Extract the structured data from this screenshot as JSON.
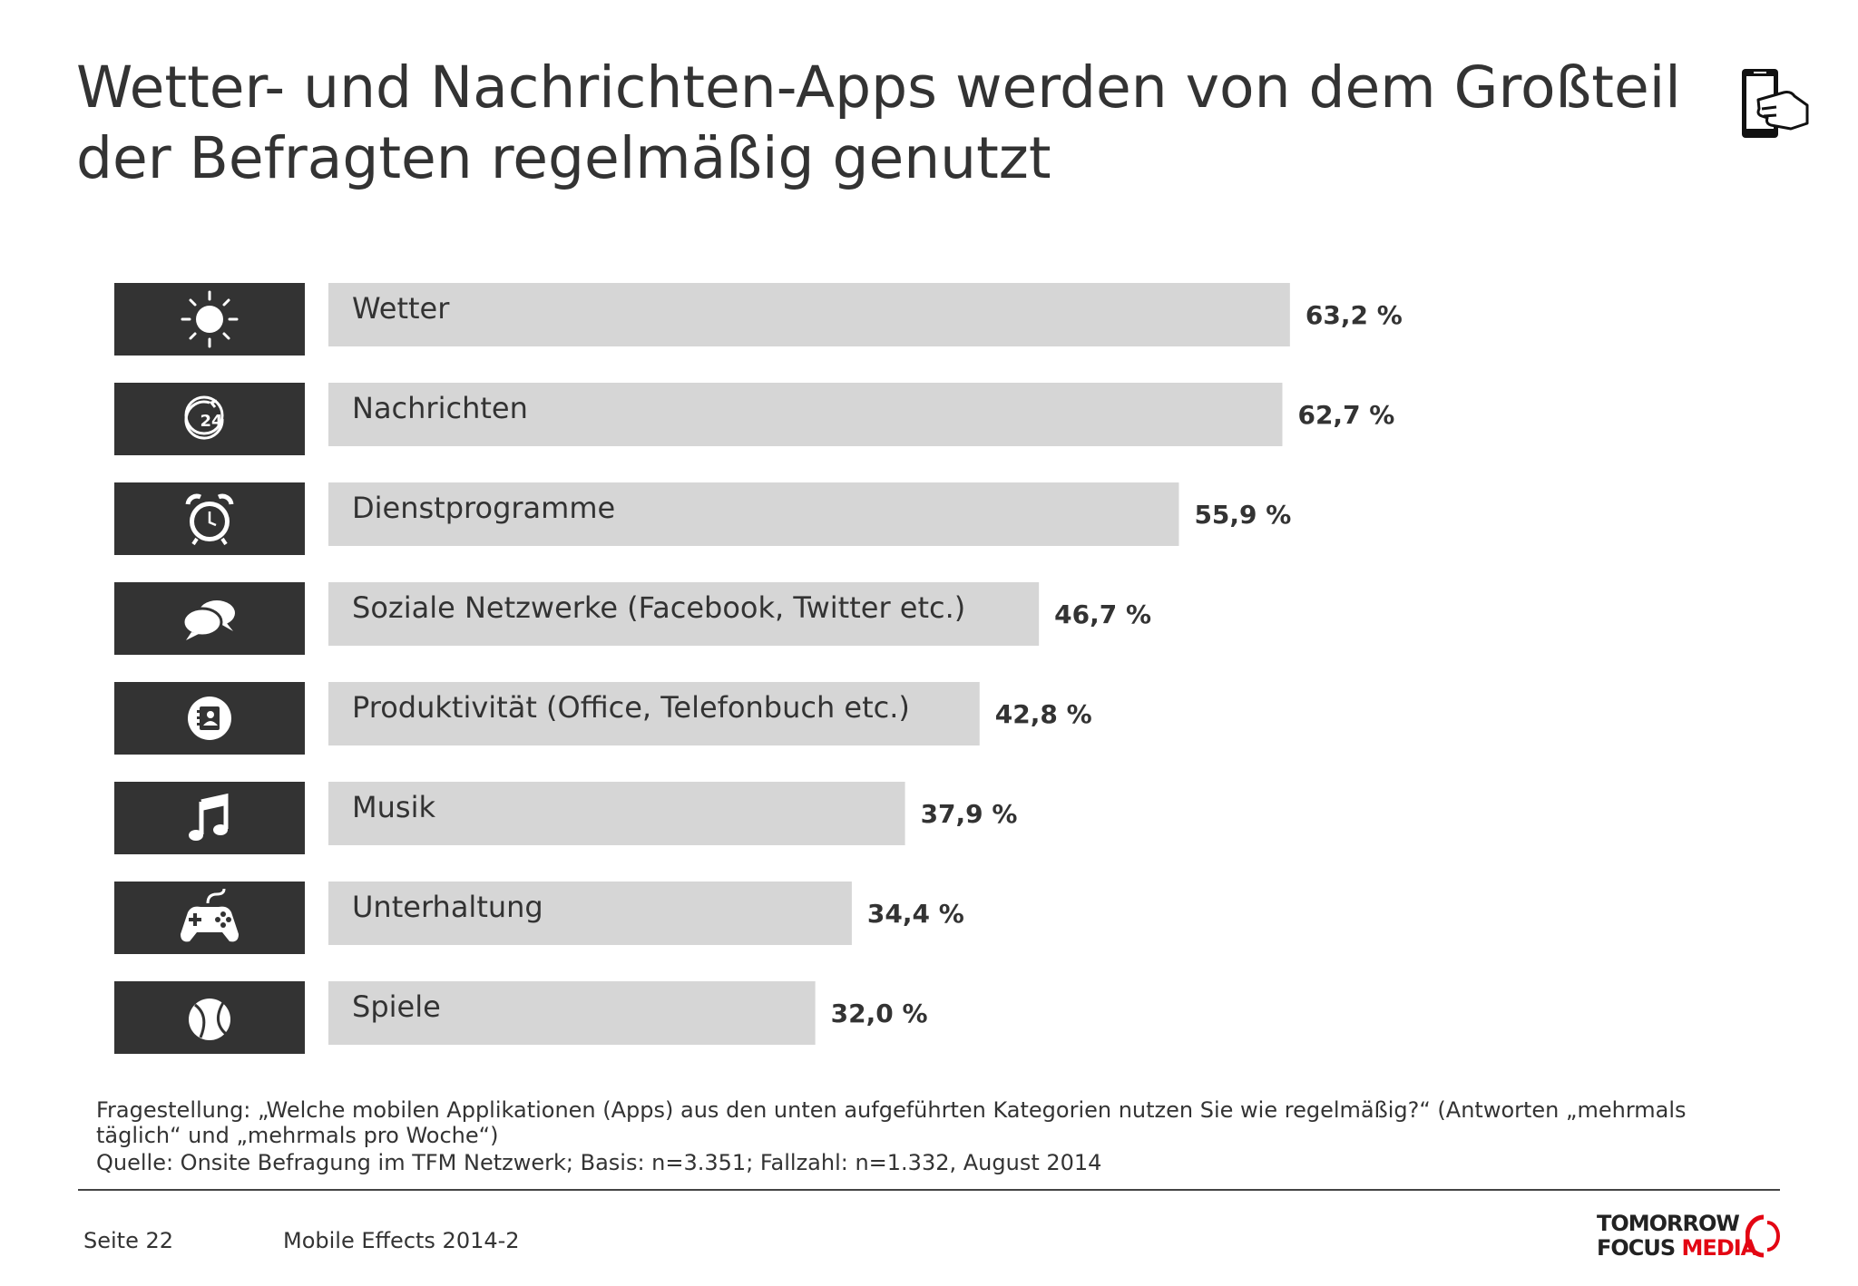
{
  "title_line1": "Wetter- und Nachrichten-Apps werden von dem Großteil",
  "title_line2": "der Befragten regelmäßig genutzt",
  "colors": {
    "bar": "#d6d6d6",
    "icon_box": "#333333",
    "text": "#333333",
    "brand_accent": "#e30613"
  },
  "chart_data": {
    "type": "bar",
    "orientation": "horizontal",
    "categories": [
      "Wetter",
      "Nachrichten",
      "Dienstprogramme",
      "Soziale Netzwerke (Facebook, Twitter etc.)",
      "Produktivität (Office, Telefonbuch etc.)",
      "Musik",
      "Unterhaltung",
      "Spiele"
    ],
    "values": [
      63.2,
      62.7,
      55.9,
      46.7,
      42.8,
      37.9,
      34.4,
      32.0
    ],
    "value_labels": [
      "63,2 %",
      "62,7 %",
      "55,9 %",
      "46,7 %",
      "42,8 %",
      "37,9 %",
      "34,4 %",
      "32,0 %"
    ],
    "icons": [
      "sun-icon",
      "news-24-icon",
      "alarm-clock-icon",
      "chat-bubbles-icon",
      "contacts-icon",
      "music-note-icon",
      "gamepad-icon",
      "ball-icon"
    ],
    "grid": false,
    "legend": false
  },
  "question": "Fragestellung: „Welche mobilen Applikationen (Apps) aus den unten aufgeführten Kategorien nutzen Sie wie regelmäßig?“ (Antworten „mehrmals täglich“ und „mehrmals pro Woche“)",
  "source": "Quelle: Onsite Befragung im TFM Netzwerk; Basis: n=3.351; Fallzahl: n=1.332, August 2014",
  "footer": {
    "page": "Seite 22",
    "report": "Mobile Effects 2014-2",
    "brand_line1": "TOMORROW",
    "brand_line2_a": "FOCUS ",
    "brand_line2_b": "MEDIA"
  }
}
